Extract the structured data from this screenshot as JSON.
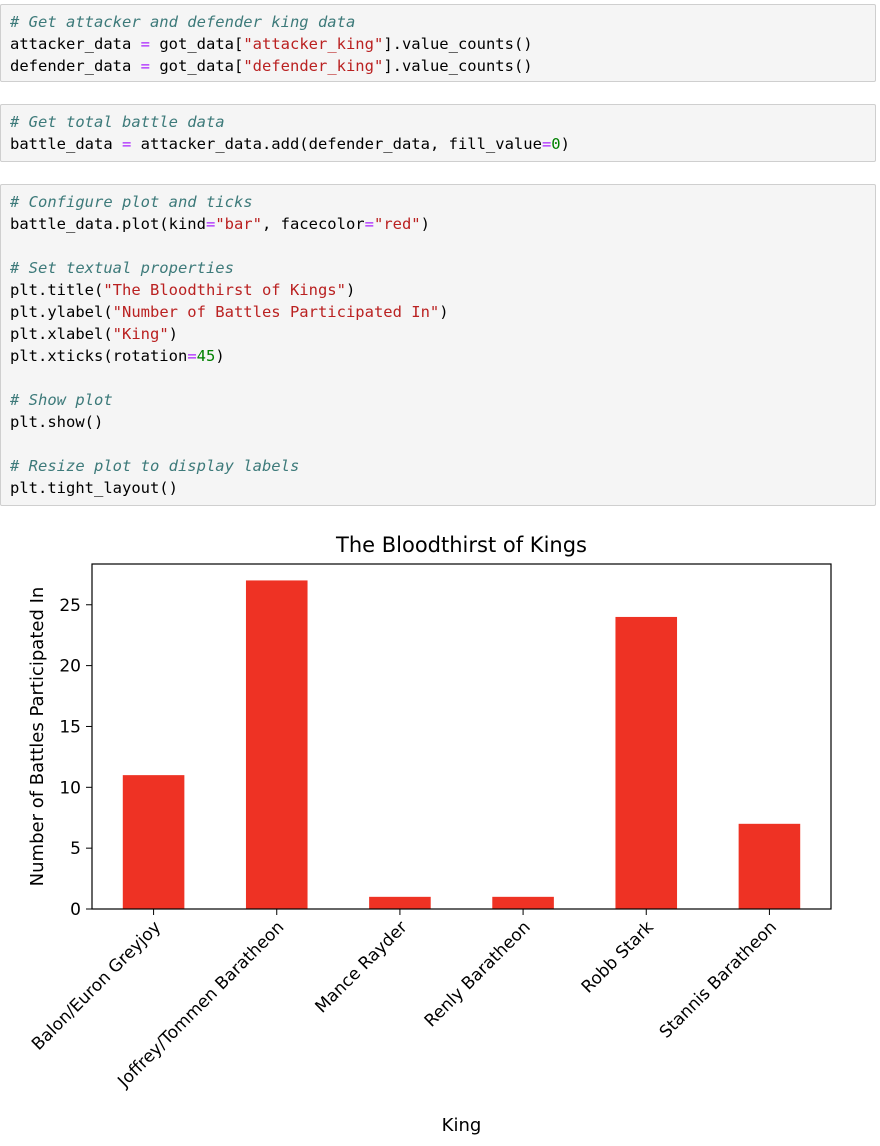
{
  "cells": [
    {
      "lines": [
        [
          {
            "t": "# Get attacker and defender king data",
            "c": "cmt"
          }
        ],
        [
          {
            "t": "attacker_data ",
            "c": "plain"
          },
          {
            "t": "=",
            "c": "op"
          },
          {
            "t": " got_data[",
            "c": "plain"
          },
          {
            "t": "\"attacker_king\"",
            "c": "str"
          },
          {
            "t": "].value_counts()",
            "c": "plain"
          }
        ],
        [
          {
            "t": "defender_data ",
            "c": "plain"
          },
          {
            "t": "=",
            "c": "op"
          },
          {
            "t": " got_data[",
            "c": "plain"
          },
          {
            "t": "\"defender_king\"",
            "c": "str"
          },
          {
            "t": "].value_counts()",
            "c": "plain"
          }
        ]
      ]
    },
    {
      "lines": [
        [
          {
            "t": "# Get total battle data",
            "c": "cmt"
          }
        ],
        [
          {
            "t": "battle_data ",
            "c": "plain"
          },
          {
            "t": "=",
            "c": "op"
          },
          {
            "t": " attacker_data.add(defender_data, fill_value",
            "c": "plain"
          },
          {
            "t": "=",
            "c": "op"
          },
          {
            "t": "0",
            "c": "num"
          },
          {
            "t": ")",
            "c": "plain"
          }
        ]
      ]
    },
    {
      "lines": [
        [
          {
            "t": "# Configure plot and ticks",
            "c": "cmt"
          }
        ],
        [
          {
            "t": "battle_data.plot(kind",
            "c": "plain"
          },
          {
            "t": "=",
            "c": "op"
          },
          {
            "t": "\"bar\"",
            "c": "str"
          },
          {
            "t": ", facecolor",
            "c": "plain"
          },
          {
            "t": "=",
            "c": "op"
          },
          {
            "t": "\"red\"",
            "c": "str"
          },
          {
            "t": ")",
            "c": "plain"
          }
        ],
        [],
        [
          {
            "t": "# Set textual properties",
            "c": "cmt"
          }
        ],
        [
          {
            "t": "plt.title(",
            "c": "plain"
          },
          {
            "t": "\"The Bloodthirst of Kings\"",
            "c": "str"
          },
          {
            "t": ")",
            "c": "plain"
          }
        ],
        [
          {
            "t": "plt.ylabel(",
            "c": "plain"
          },
          {
            "t": "\"Number of Battles Participated In\"",
            "c": "str"
          },
          {
            "t": ")",
            "c": "plain"
          }
        ],
        [
          {
            "t": "plt.xlabel(",
            "c": "plain"
          },
          {
            "t": "\"King\"",
            "c": "str"
          },
          {
            "t": ")",
            "c": "plain"
          }
        ],
        [
          {
            "t": "plt.xticks(rotation",
            "c": "plain"
          },
          {
            "t": "=",
            "c": "op"
          },
          {
            "t": "45",
            "c": "num"
          },
          {
            "t": ")",
            "c": "plain"
          }
        ],
        [],
        [
          {
            "t": "# Show plot",
            "c": "cmt"
          }
        ],
        [
          {
            "t": "plt.show()",
            "c": "plain"
          }
        ],
        [],
        [
          {
            "t": "# Resize plot to display labels",
            "c": "cmt"
          }
        ],
        [
          {
            "t": "plt.tight_layout()",
            "c": "plain"
          }
        ]
      ]
    }
  ],
  "colors": {
    "comment": "#3d7a7a",
    "string": "#ba2121",
    "operator": "#aa22ff",
    "number": "#008000",
    "bar": "#ee3224",
    "cell_background": "#f5f5f5",
    "cell_border": "#cfcfcf"
  },
  "chart_data": {
    "type": "bar",
    "title": "The Bloodthirst of Kings",
    "xlabel": "King",
    "ylabel": "Number of Battles Participated In",
    "categories": [
      "Balon/Euron Greyjoy",
      "Joffrey/Tommen Baratheon",
      "Mance Rayder",
      "Renly Baratheon",
      "Robb Stark",
      "Stannis Baratheon"
    ],
    "values": [
      11,
      27,
      1,
      1,
      24,
      7
    ],
    "yticks": [
      "0",
      "5",
      "10",
      "15",
      "20",
      "25"
    ],
    "ylim": [
      0,
      28.35
    ],
    "xtick_rotation": 45,
    "bar_color": "#ee3224",
    "grid": false,
    "legend": "none"
  }
}
